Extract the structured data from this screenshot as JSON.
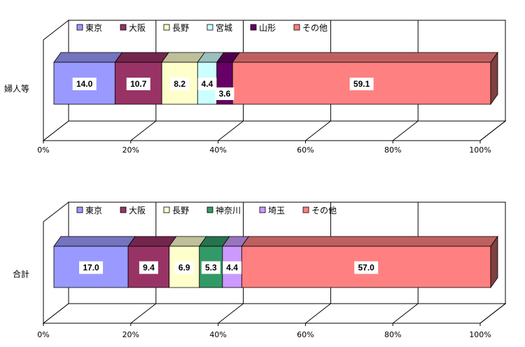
{
  "chart_data": [
    {
      "type": "bar",
      "orientation": "horizontal",
      "stacked": "percent",
      "style": "3d",
      "categories": [
        "婦人等"
      ],
      "xlim": [
        0,
        100
      ],
      "x_ticks": [
        "0%",
        "20%",
        "40%",
        "60%",
        "80%",
        "100%"
      ],
      "legend_position": "top",
      "series": [
        {
          "name": "東京",
          "values": [
            14.0
          ],
          "color": "#9999ff"
        },
        {
          "name": "大阪",
          "values": [
            10.7
          ],
          "color": "#993366"
        },
        {
          "name": "長野",
          "values": [
            8.2
          ],
          "color": "#ffffcc"
        },
        {
          "name": "宮城",
          "values": [
            4.4
          ],
          "color": "#ccffff"
        },
        {
          "name": "山形",
          "values": [
            3.6
          ],
          "color": "#660066"
        },
        {
          "name": "その他",
          "values": [
            59.1
          ],
          "color": "#ff8080"
        }
      ],
      "data_labels": [
        "14.0",
        "10.7",
        "8.2",
        "4.4",
        "3.6",
        "59.1"
      ]
    },
    {
      "type": "bar",
      "orientation": "horizontal",
      "stacked": "percent",
      "style": "3d",
      "categories": [
        "合計"
      ],
      "xlim": [
        0,
        100
      ],
      "x_ticks": [
        "0%",
        "20%",
        "40%",
        "60%",
        "80%",
        "100%"
      ],
      "legend_position": "top",
      "series": [
        {
          "name": "東京",
          "values": [
            17.0
          ],
          "color": "#9999ff"
        },
        {
          "name": "大阪",
          "values": [
            9.4
          ],
          "color": "#993366"
        },
        {
          "name": "長野",
          "values": [
            6.9
          ],
          "color": "#ffffcc"
        },
        {
          "name": "神奈川",
          "values": [
            5.3
          ],
          "color": "#339966"
        },
        {
          "name": "埼玉",
          "values": [
            4.4
          ],
          "color": "#cc99ff"
        },
        {
          "name": "その他",
          "values": [
            57.0
          ],
          "color": "#ff8080"
        }
      ],
      "data_labels": [
        "17.0",
        "9.4",
        "6.9",
        "5.3",
        "4.4",
        "57.0"
      ]
    }
  ]
}
